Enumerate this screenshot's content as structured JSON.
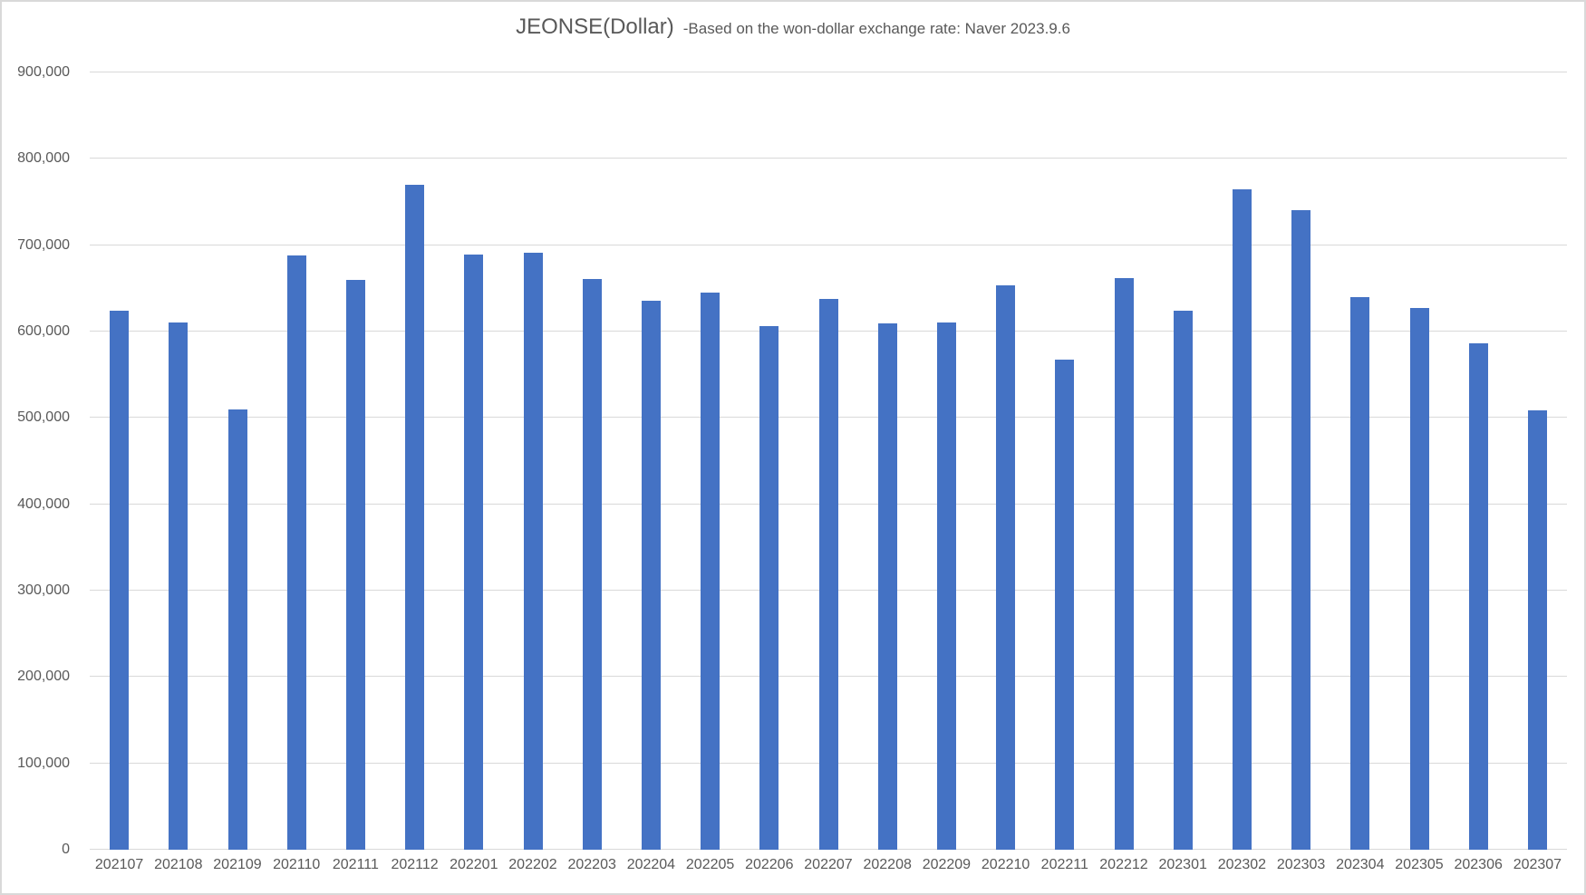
{
  "chart": {
    "title": "JEONSE(Dollar)",
    "subtitle": "-Based on the won-dollar exchange rate: Naver 2023.9.6",
    "colors": {
      "bar": "#4472C4",
      "gridline": "#D9D9D9",
      "text": "#595959",
      "frame_border": "#D9D9D9",
      "background": "#FFFFFF"
    }
  },
  "chart_data": {
    "type": "bar",
    "title": "JEONSE(Dollar)",
    "subtitle": "-Based on the won-dollar exchange rate: Naver 2023.9.6",
    "categories": [
      "202107",
      "202108",
      "202109",
      "202110",
      "202111",
      "202112",
      "202201",
      "202202",
      "202203",
      "202204",
      "202205",
      "202206",
      "202207",
      "202208",
      "202209",
      "202210",
      "202211",
      "202212",
      "202301",
      "202302",
      "202303",
      "202304",
      "202305",
      "202306",
      "202307"
    ],
    "values": [
      624000,
      610000,
      510000,
      688000,
      660000,
      770000,
      689000,
      691000,
      661000,
      636000,
      645000,
      606000,
      638000,
      609000,
      610000,
      654000,
      568000,
      662000,
      624000,
      765000,
      741000,
      640000,
      627000,
      586000,
      509000
    ],
    "xlabel": "",
    "ylabel": "",
    "ylim": [
      0,
      900000
    ],
    "ytick_step": 100000,
    "ytick_labels": [
      "0",
      "100,000",
      "200,000",
      "300,000",
      "400,000",
      "500,000",
      "600,000",
      "700,000",
      "800,000",
      "900,000"
    ],
    "grid": true,
    "legend": "none",
    "bar_color": "#4472C4"
  }
}
